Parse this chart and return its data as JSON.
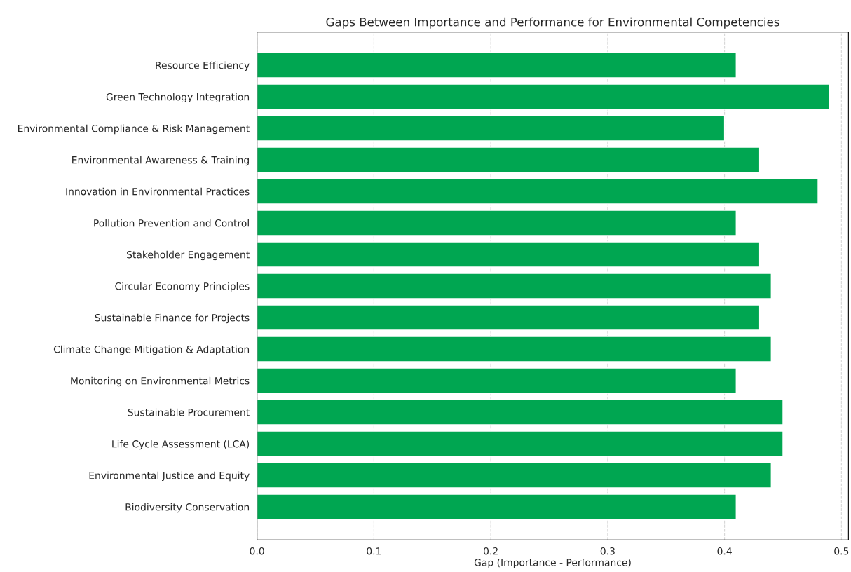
{
  "chart_data": {
    "type": "bar",
    "orientation": "horizontal",
    "title": "Gaps Between Importance and Performance for Environmental Competencies",
    "xlabel": "Gap (Importance - Performance)",
    "categories": [
      "Resource Efficiency",
      "Green Technology Integration",
      "Environmental Compliance & Risk Management",
      "Environmental Awareness & Training",
      "Innovation in Environmental Practices",
      "Pollution Prevention and Control",
      "Stakeholder Engagement",
      "Circular Economy Principles",
      "Sustainable Finance for Projects",
      "Climate Change Mitigation & Adaptation",
      "Monitoring on Environmental Metrics",
      "Sustainable Procurement",
      "Life Cycle Assessment (LCA)",
      "Environmental Justice and Equity",
      "Biodiversity Conservation"
    ],
    "values": [
      0.41,
      0.49,
      0.4,
      0.43,
      0.48,
      0.41,
      0.43,
      0.44,
      0.43,
      0.44,
      0.41,
      0.45,
      0.45,
      0.44,
      0.41
    ],
    "color": "#00a651",
    "xlim": [
      0,
      0.506
    ],
    "xticks": [
      {
        "value": 0,
        "label": "0.0"
      },
      0.1,
      0.2,
      0.3,
      0.4,
      {
        "value": 0.5,
        "label": "0.5"
      }
    ],
    "grid": "x"
  }
}
